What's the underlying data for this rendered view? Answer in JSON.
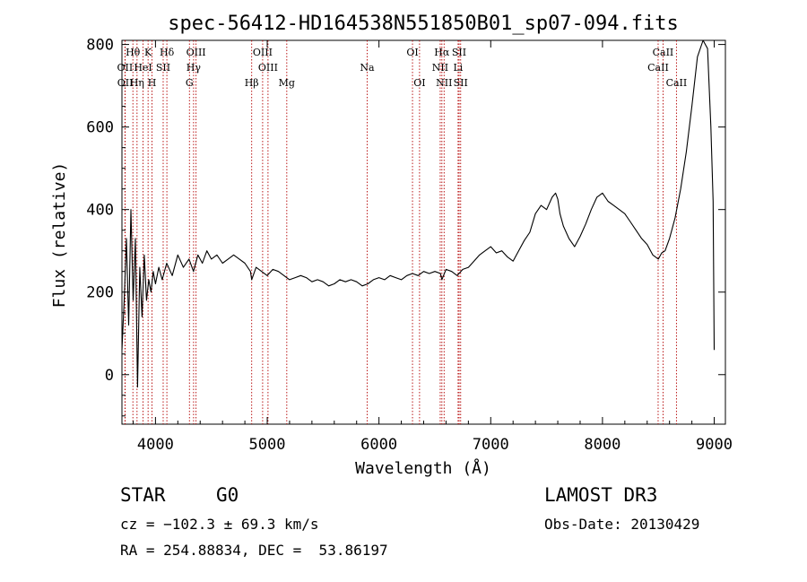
{
  "chart_data": {
    "type": "line",
    "title": "spec-56412-HD164538N551850B01_sp07-094.fits",
    "xlabel": "Wavelength (Å)",
    "ylabel": "Flux (relative)",
    "xlim": [
      3700,
      9100
    ],
    "ylim": [
      -120,
      810
    ],
    "xticks": [
      4000,
      5000,
      6000,
      7000,
      8000,
      9000
    ],
    "yticks": [
      0,
      200,
      400,
      600,
      800
    ],
    "series": [
      {
        "name": "flux",
        "x": [
          3700,
          3720,
          3740,
          3760,
          3780,
          3800,
          3820,
          3840,
          3860,
          3880,
          3900,
          3920,
          3940,
          3960,
          3980,
          4000,
          4030,
          4060,
          4100,
          4150,
          4200,
          4250,
          4300,
          4340,
          4380,
          4420,
          4460,
          4500,
          4550,
          4600,
          4650,
          4700,
          4750,
          4800,
          4850,
          4861,
          4900,
          4950,
          5000,
          5050,
          5100,
          5150,
          5200,
          5250,
          5300,
          5350,
          5400,
          5450,
          5500,
          5550,
          5600,
          5650,
          5700,
          5750,
          5800,
          5850,
          5900,
          5950,
          6000,
          6050,
          6100,
          6150,
          6200,
          6250,
          6300,
          6350,
          6400,
          6450,
          6500,
          6550,
          6563,
          6600,
          6650,
          6700,
          6750,
          6800,
          6850,
          6900,
          6950,
          7000,
          7050,
          7100,
          7150,
          7200,
          7250,
          7300,
          7350,
          7400,
          7450,
          7500,
          7550,
          7580,
          7600,
          7620,
          7650,
          7700,
          7750,
          7800,
          7850,
          7900,
          7950,
          8000,
          8050,
          8100,
          8150,
          8200,
          8250,
          8300,
          8350,
          8400,
          8450,
          8500,
          8530,
          8560,
          8600,
          8650,
          8700,
          8750,
          8800,
          8850,
          8900,
          8940,
          8970,
          8990,
          9000
        ],
        "values": [
          60,
          180,
          330,
          120,
          400,
          180,
          330,
          -30,
          260,
          140,
          290,
          180,
          230,
          200,
          250,
          220,
          260,
          230,
          270,
          240,
          290,
          260,
          280,
          250,
          290,
          270,
          300,
          280,
          290,
          270,
          280,
          290,
          280,
          270,
          250,
          230,
          260,
          250,
          240,
          255,
          250,
          240,
          230,
          235,
          240,
          235,
          225,
          230,
          225,
          215,
          220,
          230,
          225,
          230,
          225,
          215,
          220,
          230,
          235,
          230,
          240,
          235,
          230,
          240,
          245,
          240,
          250,
          245,
          250,
          245,
          230,
          255,
          250,
          240,
          255,
          260,
          275,
          290,
          300,
          310,
          295,
          300,
          285,
          275,
          300,
          325,
          345,
          390,
          410,
          400,
          430,
          440,
          425,
          390,
          360,
          330,
          310,
          335,
          365,
          400,
          430,
          440,
          420,
          410,
          400,
          390,
          370,
          350,
          330,
          315,
          290,
          280,
          295,
          300,
          330,
          380,
          450,
          540,
          650,
          770,
          820,
          790,
          600,
          420,
          60
        ]
      }
    ],
    "lines": [
      {
        "name": "Hθ",
        "x": 3798,
        "row": 0
      },
      {
        "name": "OII",
        "x": 3727,
        "row": 1
      },
      {
        "name": "OII",
        "x": 3729,
        "row": 2
      },
      {
        "name": "Hη",
        "x": 3835,
        "row": 2
      },
      {
        "name": "K",
        "x": 3934,
        "row": 0
      },
      {
        "name": "HeI",
        "x": 3889,
        "row": 1
      },
      {
        "name": "H",
        "x": 3969,
        "row": 2
      },
      {
        "name": "Hδ",
        "x": 4102,
        "row": 0
      },
      {
        "name": "SII",
        "x": 4069,
        "row": 1
      },
      {
        "name": "OIII",
        "x": 4363,
        "row": 0
      },
      {
        "name": "Hγ",
        "x": 4341,
        "row": 1
      },
      {
        "name": "G",
        "x": 4304,
        "row": 2
      },
      {
        "name": "Hβ",
        "x": 4861,
        "row": 2
      },
      {
        "name": "OIII",
        "x": 4959,
        "row": 0
      },
      {
        "name": "OIII",
        "x": 5007,
        "row": 1
      },
      {
        "name": "Mg",
        "x": 5175,
        "row": 2
      },
      {
        "name": "Na",
        "x": 5894,
        "row": 1
      },
      {
        "name": "OI",
        "x": 6300,
        "row": 0
      },
      {
        "name": "OI",
        "x": 6363,
        "row": 2
      },
      {
        "name": "Hα",
        "x": 6563,
        "row": 0
      },
      {
        "name": "NII",
        "x": 6548,
        "row": 1
      },
      {
        "name": "NII",
        "x": 6583,
        "row": 2
      },
      {
        "name": "SII",
        "x": 6717,
        "row": 0
      },
      {
        "name": "Li",
        "x": 6708,
        "row": 1
      },
      {
        "name": "SII",
        "x": 6731,
        "row": 2
      },
      {
        "name": "CaII",
        "x": 8542,
        "row": 0
      },
      {
        "name": "CaII",
        "x": 8498,
        "row": 1
      },
      {
        "name": "CaII",
        "x": 8662,
        "row": 2
      }
    ]
  },
  "info": {
    "class_label": "STAR",
    "subclass": "G0",
    "survey": "LAMOST DR3",
    "cz": "cz = −102.3 ± 69.3 km/s",
    "obs_date": "Obs-Date: 20130429",
    "coords": "RA = 254.88834, DEC =  53.86197"
  }
}
